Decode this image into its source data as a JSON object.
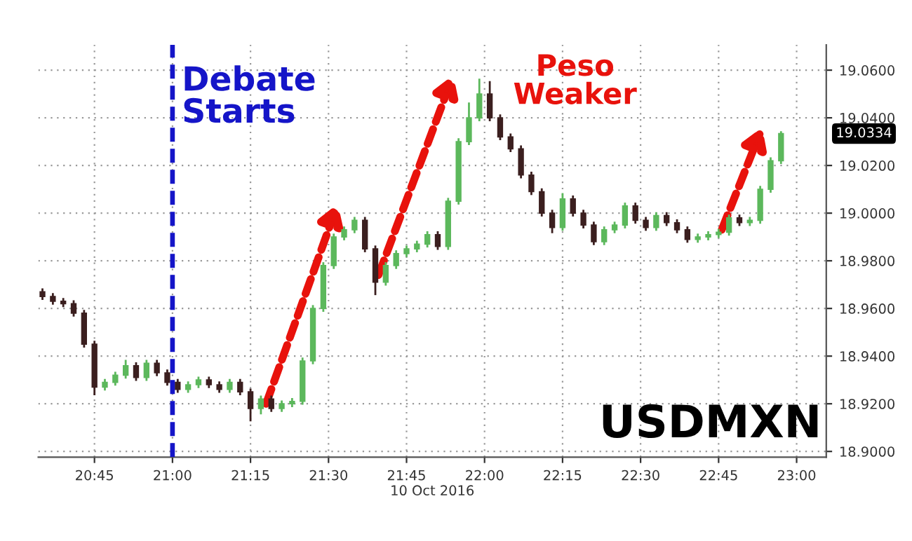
{
  "chart_data": {
    "type": "candlestick",
    "xlabel": "10 Oct 2016",
    "x": [
      20.5833,
      20.6167,
      20.65,
      20.6833,
      20.7167,
      20.75,
      20.7833,
      20.8167,
      20.85,
      20.8833,
      20.9167,
      20.95,
      20.9833,
      21.0167,
      21.05,
      21.0833,
      21.1167,
      21.15,
      21.1833,
      21.2167,
      21.25,
      21.2833,
      21.3167,
      21.35,
      21.3833,
      21.4167,
      21.45,
      21.4833,
      21.5167,
      21.55,
      21.5833,
      21.6167,
      21.65,
      21.6833,
      21.7167,
      21.75,
      21.7833,
      21.8167,
      21.85,
      21.8833,
      21.9167,
      21.95,
      21.9833,
      22.0167,
      22.05,
      22.0833,
      22.1167,
      22.15,
      22.1833,
      22.2167,
      22.25,
      22.2833,
      22.3167,
      22.35,
      22.3833,
      22.4167,
      22.45,
      22.4833,
      22.5167,
      22.55,
      22.5833,
      22.6167,
      22.65,
      22.6833,
      22.7167,
      22.75,
      22.7833,
      22.8167,
      22.85,
      22.8833,
      22.9167,
      22.95
    ],
    "ohlc": [
      [
        18.967,
        18.968,
        18.964,
        18.965
      ],
      [
        18.965,
        18.966,
        18.962,
        18.963
      ],
      [
        18.963,
        18.964,
        18.961,
        18.962
      ],
      [
        18.962,
        18.963,
        18.957,
        18.958
      ],
      [
        18.958,
        18.959,
        18.944,
        18.945
      ],
      [
        18.945,
        18.946,
        18.924,
        18.927
      ],
      [
        18.927,
        18.93,
        18.926,
        18.929
      ],
      [
        18.929,
        18.933,
        18.928,
        18.932
      ],
      [
        18.932,
        18.938,
        18.931,
        18.936
      ],
      [
        18.936,
        18.937,
        18.93,
        18.931
      ],
      [
        18.931,
        18.938,
        18.93,
        18.937
      ],
      [
        18.937,
        18.938,
        18.932,
        18.933
      ],
      [
        18.933,
        18.934,
        18.928,
        18.929
      ],
      [
        18.929,
        18.93,
        18.925,
        18.926
      ],
      [
        18.926,
        18.929,
        18.925,
        18.928
      ],
      [
        18.928,
        18.931,
        18.927,
        18.93
      ],
      [
        18.93,
        18.931,
        18.927,
        18.928
      ],
      [
        18.928,
        18.929,
        18.925,
        18.926
      ],
      [
        18.926,
        18.93,
        18.925,
        18.929
      ],
      [
        18.929,
        18.93,
        18.924,
        18.925
      ],
      [
        18.925,
        18.926,
        18.913,
        18.918
      ],
      [
        18.918,
        18.923,
        18.916,
        18.922
      ],
      [
        18.922,
        18.923,
        18.917,
        18.918
      ],
      [
        18.918,
        18.921,
        18.917,
        18.92
      ],
      [
        18.92,
        18.922,
        18.919,
        18.921
      ],
      [
        18.921,
        18.939,
        18.92,
        18.938
      ],
      [
        18.938,
        18.961,
        18.937,
        18.96
      ],
      [
        18.96,
        18.979,
        18.959,
        18.978
      ],
      [
        18.978,
        18.991,
        18.977,
        18.99
      ],
      [
        18.99,
        18.994,
        18.989,
        18.993
      ],
      [
        18.993,
        18.998,
        18.992,
        18.997
      ],
      [
        18.997,
        18.998,
        18.984,
        18.985
      ],
      [
        18.985,
        18.986,
        18.966,
        18.971
      ],
      [
        18.971,
        18.979,
        18.97,
        18.978
      ],
      [
        18.978,
        18.984,
        18.977,
        18.983
      ],
      [
        18.983,
        18.986,
        18.982,
        18.985
      ],
      [
        18.985,
        18.988,
        18.984,
        18.987
      ],
      [
        18.987,
        18.992,
        18.986,
        18.991
      ],
      [
        18.991,
        18.992,
        18.985,
        18.986
      ],
      [
        18.986,
        19.006,
        18.985,
        19.005
      ],
      [
        19.005,
        19.031,
        19.004,
        19.03
      ],
      [
        19.03,
        19.046,
        19.029,
        19.04
      ],
      [
        19.04,
        19.056,
        19.039,
        19.05
      ],
      [
        19.05,
        19.055,
        19.039,
        19.04
      ],
      [
        19.04,
        19.041,
        19.031,
        19.032
      ],
      [
        19.032,
        19.033,
        19.026,
        19.027
      ],
      [
        19.027,
        19.028,
        19.015,
        19.016
      ],
      [
        19.016,
        19.017,
        19.008,
        19.009
      ],
      [
        19.009,
        19.01,
        18.999,
        19.0
      ],
      [
        19.0,
        19.001,
        18.992,
        18.994
      ],
      [
        18.994,
        19.008,
        18.993,
        19.006
      ],
      [
        19.006,
        19.007,
        18.999,
        19.0
      ],
      [
        19.0,
        19.001,
        18.994,
        18.995
      ],
      [
        18.995,
        18.996,
        18.987,
        18.988
      ],
      [
        18.988,
        18.994,
        18.987,
        18.993
      ],
      [
        18.993,
        18.996,
        18.992,
        18.995
      ],
      [
        18.995,
        19.004,
        18.994,
        19.003
      ],
      [
        19.003,
        19.004,
        18.996,
        18.997
      ],
      [
        18.997,
        18.998,
        18.993,
        18.994
      ],
      [
        18.994,
        19.0,
        18.993,
        18.999
      ],
      [
        18.999,
        19.0,
        18.995,
        18.996
      ],
      [
        18.996,
        18.997,
        18.992,
        18.993
      ],
      [
        18.993,
        18.994,
        18.988,
        18.989
      ],
      [
        18.989,
        18.991,
        18.988,
        18.99
      ],
      [
        18.99,
        18.992,
        18.989,
        18.991
      ],
      [
        18.991,
        18.993,
        18.99,
        18.992
      ],
      [
        18.992,
        18.999,
        18.991,
        18.998
      ],
      [
        18.998,
        18.999,
        18.995,
        18.996
      ],
      [
        18.996,
        18.998,
        18.995,
        18.997
      ],
      [
        18.997,
        19.011,
        18.996,
        19.01
      ],
      [
        19.01,
        19.023,
        19.009,
        19.022
      ],
      [
        19.022,
        19.034,
        19.021,
        19.0334
      ]
    ],
    "colors": [
      "#3b1f1f",
      "#3b1f1f",
      "#3b1f1f",
      "#3b1f1f",
      "#3b1f1f",
      "#3b1f1f",
      "#5cb85c",
      "#5cb85c",
      "#5cb85c",
      "#3b1f1f",
      "#5cb85c",
      "#3b1f1f",
      "#3b1f1f",
      "#3b1f1f",
      "#5cb85c",
      "#5cb85c",
      "#3b1f1f",
      "#3b1f1f",
      "#5cb85c",
      "#3b1f1f",
      "#3b1f1f",
      "#5cb85c",
      "#3b1f1f",
      "#5cb85c",
      "#5cb85c",
      "#5cb85c",
      "#5cb85c",
      "#5cb85c",
      "#5cb85c",
      "#5cb85c",
      "#5cb85c",
      "#3b1f1f",
      "#3b1f1f",
      "#5cb85c",
      "#5cb85c",
      "#5cb85c",
      "#5cb85c",
      "#5cb85c",
      "#3b1f1f",
      "#5cb85c",
      "#5cb85c",
      "#5cb85c",
      "#5cb85c",
      "#3b1f1f",
      "#3b1f1f",
      "#3b1f1f",
      "#3b1f1f",
      "#3b1f1f",
      "#3b1f1f",
      "#3b1f1f",
      "#5cb85c",
      "#3b1f1f",
      "#3b1f1f",
      "#3b1f1f",
      "#5cb85c",
      "#5cb85c",
      "#5cb85c",
      "#3b1f1f",
      "#3b1f1f",
      "#5cb85c",
      "#3b1f1f",
      "#3b1f1f",
      "#3b1f1f",
      "#5cb85c",
      "#5cb85c",
      "#5cb85c",
      "#5cb85c",
      "#3b1f1f",
      "#5cb85c",
      "#5cb85c",
      "#5cb85c",
      "#5cb85c"
    ],
    "xlim": [
      20.57,
      23.095
    ],
    "ylim": [
      18.8976,
      19.0706
    ],
    "xticks": [
      {
        "value": 20.75,
        "label": "20:45"
      },
      {
        "value": 21.0,
        "label": "21:00"
      },
      {
        "value": 21.25,
        "label": "21:15"
      },
      {
        "value": 21.5,
        "label": "21:30"
      },
      {
        "value": 21.75,
        "label": "21:45"
      },
      {
        "value": 22.0,
        "label": "22:00"
      },
      {
        "value": 22.25,
        "label": "22:15"
      },
      {
        "value": 22.5,
        "label": "22:30"
      },
      {
        "value": 22.75,
        "label": "22:45"
      },
      {
        "value": 23.0,
        "label": "23:00"
      }
    ],
    "yticks": [
      {
        "value": 18.9,
        "label": "18.9000"
      },
      {
        "value": 18.92,
        "label": "18.9200"
      },
      {
        "value": 18.94,
        "label": "18.9400"
      },
      {
        "value": 18.96,
        "label": "18.9600"
      },
      {
        "value": 18.98,
        "label": "18.9800"
      },
      {
        "value": 19.0,
        "label": "19.0000"
      },
      {
        "value": 19.02,
        "label": "19.0200"
      },
      {
        "value": 19.04,
        "label": "19.0400"
      },
      {
        "value": 19.06,
        "label": "19.0600"
      }
    ],
    "ref_lines": [
      {
        "axis": "x",
        "value": 21.0,
        "color": "#1515c8",
        "line_style": "dashed"
      }
    ],
    "annotations": [
      "Debate\nStarts",
      "Peso\nWeaker",
      "USDMXN",
      "19.0334"
    ],
    "grid": true
  }
}
